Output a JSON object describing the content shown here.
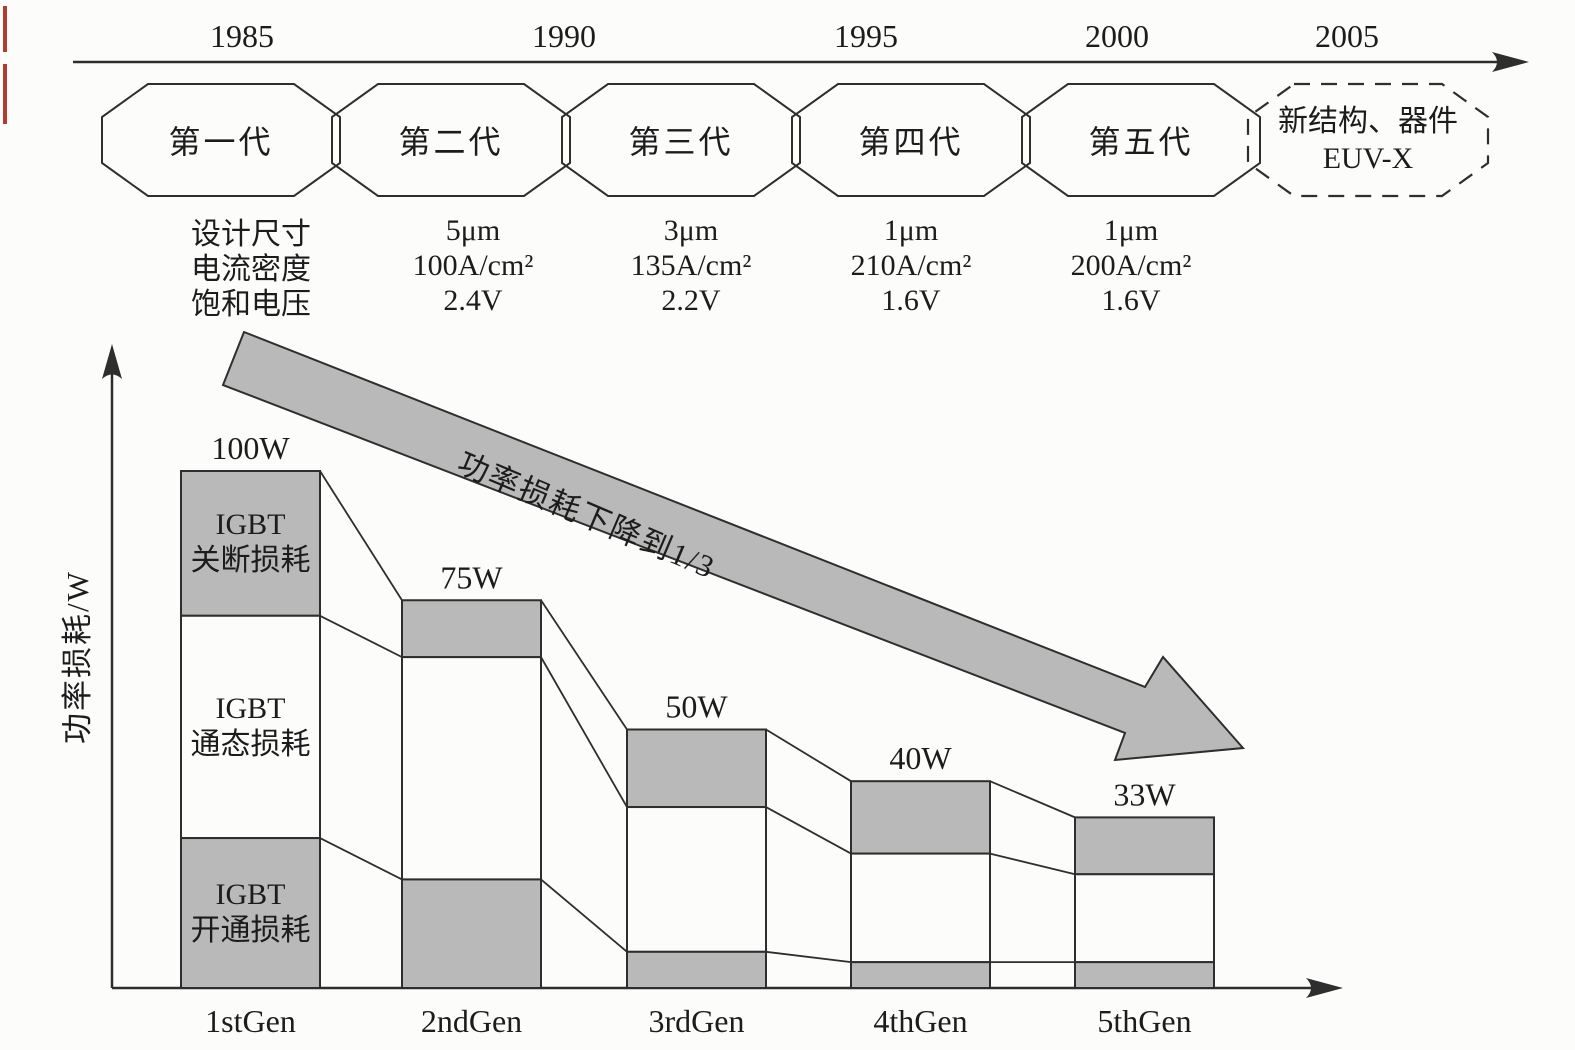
{
  "colors": {
    "fill_gray": "#b9b9b9",
    "outline": "#2e2e2e",
    "text": "#1c1c1c",
    "background": "#fcfcfb",
    "scan_artifact_red": "#b23b32"
  },
  "timeline": {
    "years": [
      "1985",
      "1990",
      "1995",
      "2000",
      "2005"
    ],
    "generation_nodes": [
      "第一代",
      "第二代",
      "第三代",
      "第四代",
      "第五代"
    ],
    "future_node": {
      "line1": "新结构、器件",
      "line2": "EUV-X"
    }
  },
  "specs": {
    "row_labels": [
      "设计尺寸",
      "电流密度",
      "饱和电压"
    ],
    "columns": [
      {
        "generation": "第二代",
        "values": [
          "5μm",
          "100A/cm²",
          "2.4V"
        ]
      },
      {
        "generation": "第三代",
        "values": [
          "3μm",
          "135A/cm²",
          "2.2V"
        ]
      },
      {
        "generation": "第四代",
        "values": [
          "1μm",
          "210A/cm²",
          "1.6V"
        ]
      },
      {
        "generation": "第五代",
        "values": [
          "1μm",
          "200A/cm²",
          "1.6V"
        ]
      }
    ]
  },
  "chart": {
    "y_axis_label": "功率损耗/W",
    "trend_annotation": "功率损耗下降到1/3",
    "bar1_segment_labels": [
      [
        "IGBT",
        "关断损耗"
      ],
      [
        "IGBT",
        "通态损耗"
      ],
      [
        "IGBT",
        "开通损耗"
      ]
    ]
  },
  "chart_data": {
    "type": "bar",
    "stacked": true,
    "categories": [
      "1stGen",
      "2ndGen",
      "3rdGen",
      "4thGen",
      "5thGen"
    ],
    "total_labels": [
      "100W",
      "75W",
      "50W",
      "40W",
      "33W"
    ],
    "totals_w": [
      100,
      75,
      50,
      40,
      33
    ],
    "series": [
      {
        "name": "IGBT关断损耗",
        "stack_position": "top",
        "fill": "gray",
        "values_w": [
          28,
          11,
          15,
          14,
          11
        ]
      },
      {
        "name": "IGBT通态损耗",
        "stack_position": "middle",
        "fill": "white",
        "values_w": [
          43,
          43,
          28,
          21,
          17
        ]
      },
      {
        "name": "IGBT开通损耗",
        "stack_position": "bottom",
        "fill": "gray",
        "values_w": [
          29,
          21,
          7,
          5,
          5
        ]
      }
    ],
    "xlabel": "",
    "ylabel": "功率损耗/W",
    "annotation": "功率损耗下降到1/3",
    "legend": "none",
    "grid": false,
    "y_axis_numeric_ticks": false
  }
}
